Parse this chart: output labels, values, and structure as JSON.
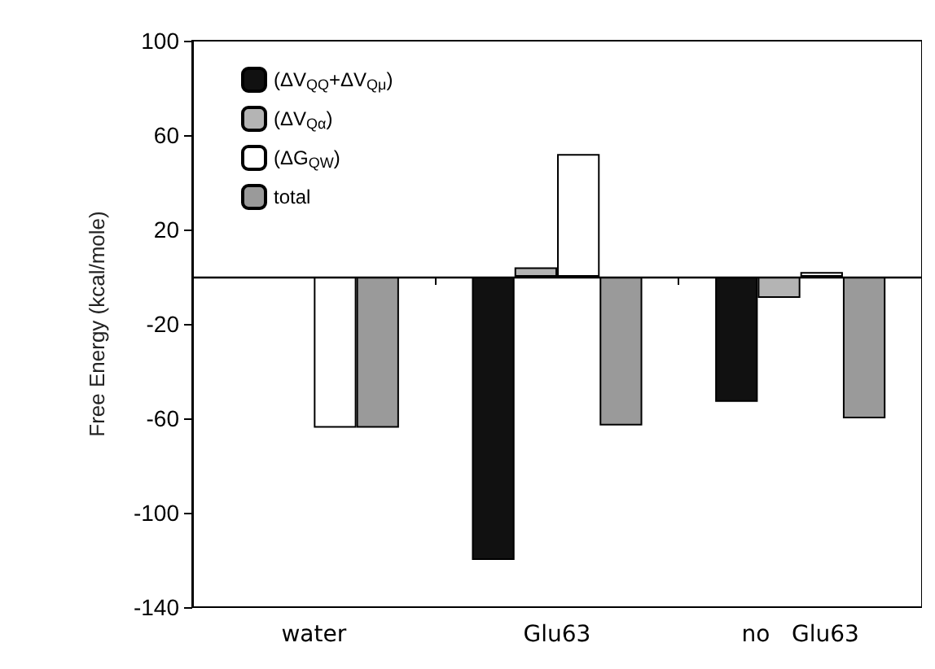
{
  "chart_data": {
    "type": "bar",
    "ylabel": "Free Energy (kcal/mole)",
    "categories": [
      "water",
      "Glu63",
      "no   Glu63"
    ],
    "series": [
      {
        "name": "(ΔV$_{QQ}$+ΔV$_{Qμ}$)",
        "color": "#111111",
        "values": [
          null,
          -120,
          -53
        ]
      },
      {
        "name": "(ΔV$_{Qα}$)",
        "color": "#b4b4b4",
        "values": [
          null,
          4,
          -9
        ]
      },
      {
        "name": "(ΔG$_{QW}$)",
        "color": "#ffffff",
        "values": [
          -64,
          52,
          2
        ]
      },
      {
        "name": "total",
        "color": "#9a9a9a",
        "values": [
          -64,
          -63,
          -60
        ]
      }
    ],
    "ylim": [
      -140,
      100
    ],
    "yticks": [
      -140,
      -100,
      -60,
      -20,
      20,
      60,
      100
    ],
    "ref_lines": [
      {
        "axis": "y",
        "value": 0
      }
    ],
    "grid": false,
    "legend": "top left"
  }
}
